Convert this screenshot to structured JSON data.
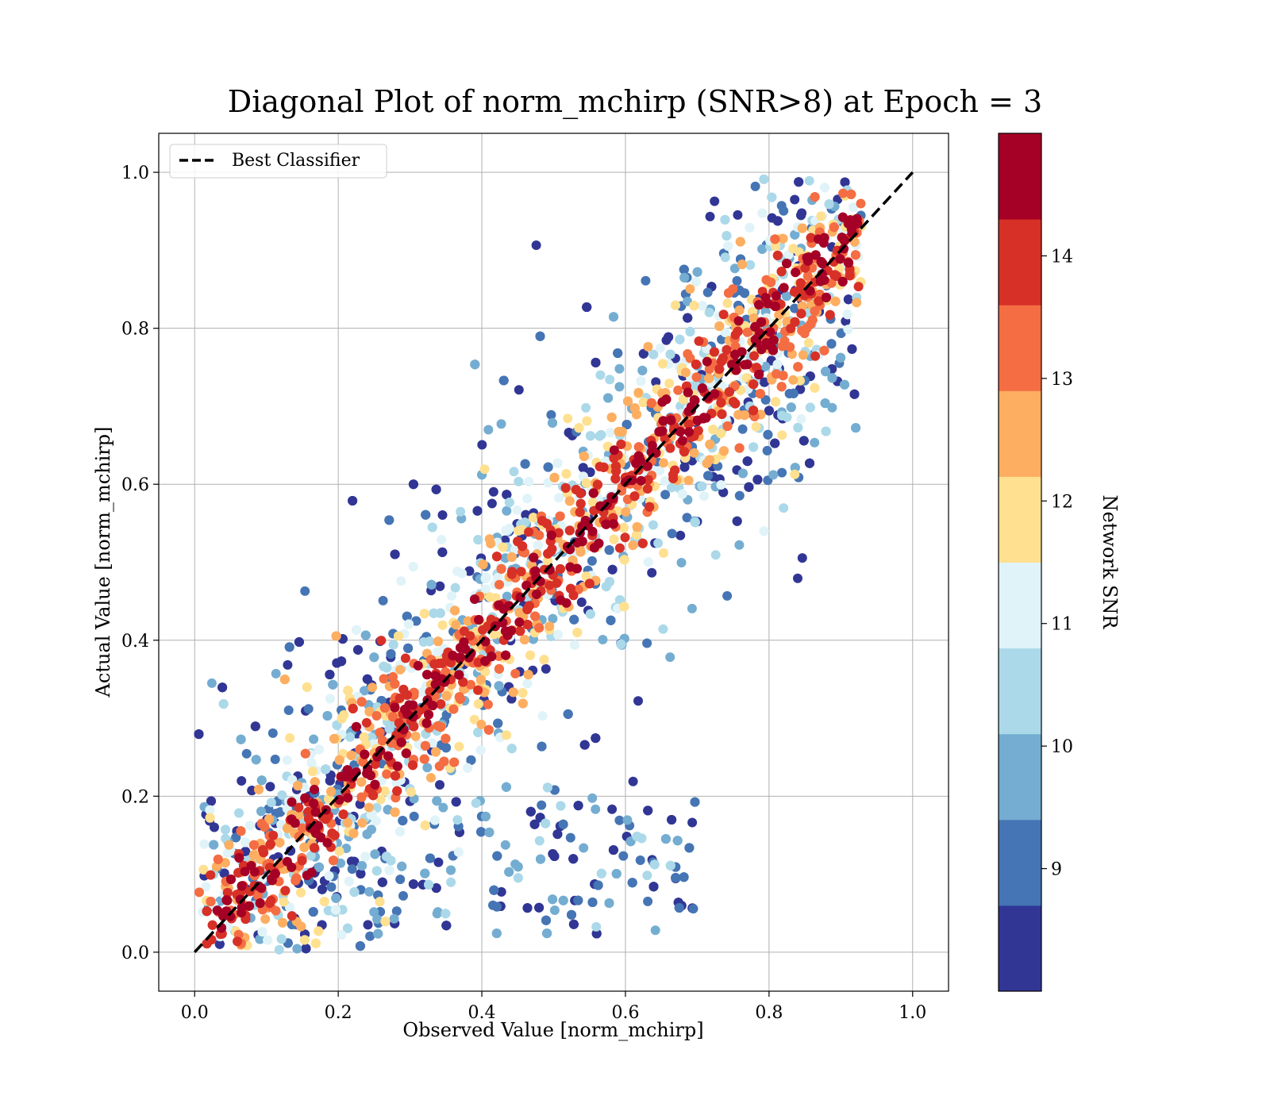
{
  "chart_data": {
    "type": "scatter",
    "title": "Diagonal Plot of norm_mchirp (SNR>8) at Epoch = 3",
    "xlabel": "Observed Value [norm_mchirp]",
    "ylabel": "Actual Value [norm_mchirp]",
    "xlim": [
      -0.05,
      1.05
    ],
    "ylim": [
      -0.05,
      1.05
    ],
    "xticks": [
      "0.0",
      "0.2",
      "0.4",
      "0.6",
      "0.8",
      "1.0"
    ],
    "yticks": [
      "0.0",
      "0.2",
      "0.4",
      "0.6",
      "0.8",
      "1.0"
    ],
    "grid": true,
    "legend": {
      "placement": "top-left",
      "entries": [
        "Best Classifier"
      ]
    },
    "reference_line": {
      "name": "Best Classifier",
      "style": "dashed",
      "color": "#000000",
      "x": [
        0,
        1
      ],
      "y": [
        0,
        1
      ]
    },
    "colorbar": {
      "label": "Network SNR",
      "range": [
        8,
        15
      ],
      "ticks": [
        "9",
        "10",
        "11",
        "12",
        "13",
        "14"
      ],
      "bins": [
        "#313695",
        "#4575b4",
        "#74add1",
        "#abd9e9",
        "#e0f3f8",
        "#fee090",
        "#fdae61",
        "#f46d43",
        "#d73027",
        "#a50026"
      ]
    },
    "points_note": "dense cloud of points concentrated along the diagonal with SNR-colored spread"
  }
}
